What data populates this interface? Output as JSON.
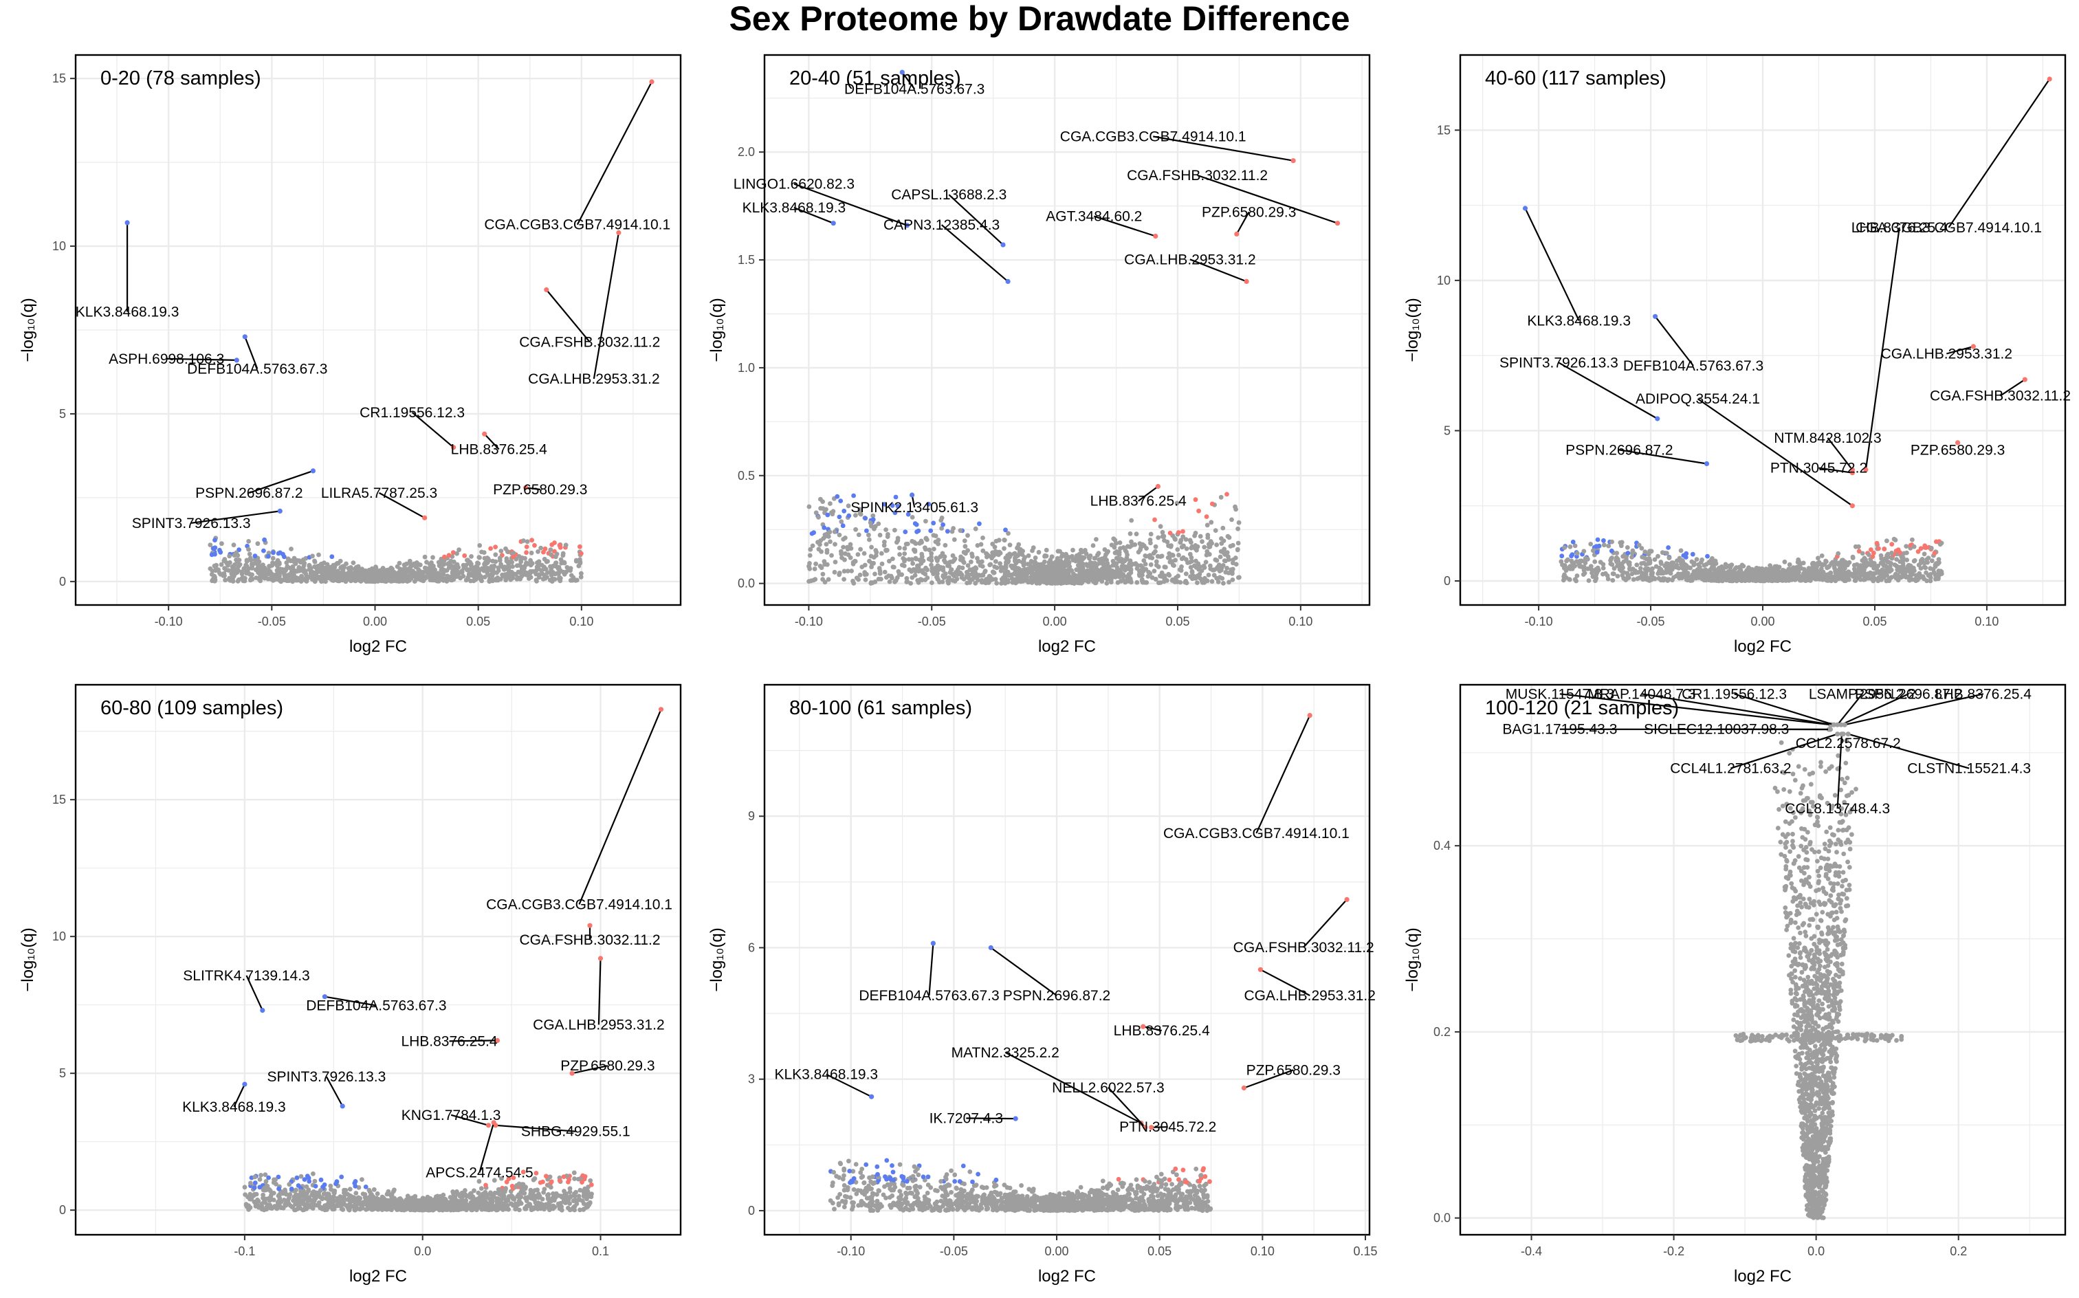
{
  "chart_data": {
    "type": "scatter",
    "subtype": "volcano-grid",
    "title": "Sex Proteome by Drawdate Difference",
    "xlabel": "log2 FC",
    "ylabel": "−log₁₀(q)",
    "colors": {
      "up": "#f8766d",
      "down": "#5b7cf0",
      "ns": "#9e9e9e",
      "grid": "#ebebeb",
      "frame": "#000000"
    },
    "panels": [
      {
        "label": "0-20 (78 samples)",
        "xlim": [
          -0.145,
          0.148
        ],
        "ylim": [
          -0.7,
          15.7
        ],
        "xticks": [
          -0.1,
          -0.05,
          0.0,
          0.05,
          0.1
        ],
        "xtick_labels": [
          "-0.10",
          "-0.05",
          "0.00",
          "0.05",
          "0.10"
        ],
        "yticks": [
          0,
          5,
          10,
          15
        ],
        "ytick_labels": [
          "0",
          "5",
          "10",
          "15"
        ],
        "cloud": {
          "xmin": -0.08,
          "xmax": 0.1,
          "ymax": 1.3
        },
        "labeled_points": [
          {
            "name": "CGA.CGB3.CGB7.4914.10.1",
            "x": 0.134,
            "y": 14.9,
            "lx": 0.098,
            "ly": 10.5,
            "dir": "up"
          },
          {
            "name": "KLK3.8468.19.3",
            "x": -0.12,
            "y": 10.7,
            "lx": -0.12,
            "ly": 7.9,
            "dir": "down"
          },
          {
            "name": "CGA.FSHB.3032.11.2",
            "x": 0.083,
            "y": 8.7,
            "lx": 0.104,
            "ly": 7.0,
            "dir": "up"
          },
          {
            "name": "CGA.LHB.2953.31.2",
            "x": 0.118,
            "y": 10.4,
            "lx": 0.106,
            "ly": 5.9,
            "dir": "up"
          },
          {
            "name": "DEFB104A.5763.67.3",
            "x": -0.063,
            "y": 7.3,
            "lx": -0.057,
            "ly": 6.2,
            "dir": "down"
          },
          {
            "name": "ASPH.6998.106.3",
            "x": -0.067,
            "y": 6.6,
            "lx": -0.101,
            "ly": 6.5,
            "dir": "down"
          },
          {
            "name": "CR1.19556.12.3",
            "x": 0.038,
            "y": 4.0,
            "lx": 0.018,
            "ly": 4.9,
            "dir": "up"
          },
          {
            "name": "LHB.8376.25.4",
            "x": 0.053,
            "y": 4.4,
            "lx": 0.06,
            "ly": 3.8,
            "dir": "up"
          },
          {
            "name": "PSPN.2696.87.2",
            "x": -0.03,
            "y": 3.3,
            "lx": -0.061,
            "ly": 2.5,
            "dir": "down"
          },
          {
            "name": "LILRA5.7787.25.3",
            "x": 0.024,
            "y": 1.9,
            "lx": 0.002,
            "ly": 2.5,
            "dir": "up"
          },
          {
            "name": "PZP.6580.29.3",
            "x": 0.073,
            "y": 2.8,
            "lx": 0.08,
            "ly": 2.6,
            "dir": "up"
          },
          {
            "name": "SPINT3.7926.13.3",
            "x": -0.046,
            "y": 2.1,
            "lx": -0.089,
            "ly": 1.6,
            "dir": "down"
          }
        ]
      },
      {
        "label": "20-40 (51 samples)",
        "xlim": [
          -0.118,
          0.128
        ],
        "ylim": [
          -0.1,
          2.45
        ],
        "xticks": [
          -0.1,
          -0.05,
          0.0,
          0.05,
          0.1
        ],
        "xtick_labels": [
          "-0.10",
          "-0.05",
          "0.00",
          "0.05",
          "0.10"
        ],
        "yticks": [
          0.0,
          0.5,
          1.0,
          1.5,
          2.0
        ],
        "ytick_labels": [
          "0.0",
          "0.5",
          "1.0",
          "1.5",
          "2.0"
        ],
        "cloud": {
          "xmin": -0.1,
          "xmax": 0.075,
          "ymax": 0.42
        },
        "labeled_points": [
          {
            "name": "DEFB104A.5763.67.3",
            "x": -0.062,
            "y": 2.37,
            "lx": -0.057,
            "ly": 2.27,
            "dir": "down"
          },
          {
            "name": "CGA.CGB3.CGB7.4914.10.1",
            "x": 0.097,
            "y": 1.96,
            "lx": 0.04,
            "ly": 2.05,
            "dir": "up"
          },
          {
            "name": "LINGO1.6620.82.3",
            "x": -0.06,
            "y": 1.66,
            "lx": -0.106,
            "ly": 1.83,
            "dir": "down"
          },
          {
            "name": "CAPSL.13688.2.3",
            "x": -0.021,
            "y": 1.57,
            "lx": -0.043,
            "ly": 1.78,
            "dir": "down"
          },
          {
            "name": "CGA.FSHB.3032.11.2",
            "x": 0.115,
            "y": 1.67,
            "lx": 0.058,
            "ly": 1.87,
            "dir": "up"
          },
          {
            "name": "KLK3.8468.19.3",
            "x": -0.09,
            "y": 1.67,
            "lx": -0.106,
            "ly": 1.72,
            "dir": "down"
          },
          {
            "name": "AGT.3484.60.2",
            "x": 0.041,
            "y": 1.61,
            "lx": 0.016,
            "ly": 1.68,
            "dir": "up"
          },
          {
            "name": "PZP.6580.29.3",
            "x": 0.074,
            "y": 1.62,
            "lx": 0.079,
            "ly": 1.7,
            "dir": "up"
          },
          {
            "name": "CAPN3.12385.4.3",
            "x": -0.019,
            "y": 1.4,
            "lx": -0.046,
            "ly": 1.64,
            "dir": "down"
          },
          {
            "name": "CGA.LHB.2953.31.2",
            "x": 0.078,
            "y": 1.4,
            "lx": 0.055,
            "ly": 1.48,
            "dir": "up"
          },
          {
            "name": "SPINK2.13405.61.3",
            "x": -0.058,
            "y": 0.41,
            "lx": -0.057,
            "ly": 0.33,
            "dir": "down"
          },
          {
            "name": "LHB.8376.25.4",
            "x": 0.042,
            "y": 0.45,
            "lx": 0.034,
            "ly": 0.36,
            "dir": "up"
          }
        ]
      },
      {
        "label": "40-60 (117 samples)",
        "xlim": [
          -0.135,
          0.135
        ],
        "ylim": [
          -0.8,
          17.5
        ],
        "xticks": [
          -0.1,
          -0.05,
          0.0,
          0.05,
          0.1
        ],
        "xtick_labels": [
          "-0.10",
          "-0.05",
          "0.00",
          "0.05",
          "0.10"
        ],
        "yticks": [
          0,
          5,
          10,
          15
        ],
        "ytick_labels": [
          "0",
          "5",
          "10",
          "15"
        ],
        "cloud": {
          "xmin": -0.09,
          "xmax": 0.08,
          "ymax": 1.4
        },
        "labeled_points": [
          {
            "name": "CGA.CGB3.CGB7.4914.10.1",
            "x": 0.128,
            "y": 16.7,
            "lx": 0.083,
            "ly": 11.6,
            "dir": "up"
          },
          {
            "name": "LHB.8376.25.4",
            "x": 0.046,
            "y": 3.7,
            "lx": 0.061,
            "ly": 11.6,
            "dir": "up"
          },
          {
            "name": "KLK3.8468.19.3",
            "x": -0.106,
            "y": 12.4,
            "lx": -0.082,
            "ly": 8.5,
            "dir": "down"
          },
          {
            "name": "DEFB104A.5763.67.3",
            "x": -0.048,
            "y": 8.8,
            "lx": -0.031,
            "ly": 7.0,
            "dir": "down"
          },
          {
            "name": "SPINT3.7926.13.3",
            "x": -0.047,
            "y": 5.4,
            "lx": -0.091,
            "ly": 7.1,
            "dir": "down"
          },
          {
            "name": "CGA.LHB.2953.31.2",
            "x": 0.094,
            "y": 7.8,
            "lx": 0.082,
            "ly": 7.4,
            "dir": "up"
          },
          {
            "name": "CGA.FSHB.3032.11.2",
            "x": 0.117,
            "y": 6.7,
            "lx": 0.106,
            "ly": 6.0,
            "dir": "up"
          },
          {
            "name": "ADIPOQ.3554.24.1",
            "x": 0.04,
            "y": 2.5,
            "lx": -0.029,
            "ly": 5.9,
            "dir": "up"
          },
          {
            "name": "NTM.8428.102.3",
            "x": 0.04,
            "y": 3.7,
            "lx": 0.029,
            "ly": 4.6,
            "dir": "up"
          },
          {
            "name": "PSPN.2696.87.2",
            "x": -0.025,
            "y": 3.9,
            "lx": -0.064,
            "ly": 4.2,
            "dir": "down"
          },
          {
            "name": "PZP.6580.29.3",
            "x": 0.087,
            "y": 4.6,
            "lx": 0.087,
            "ly": 4.2,
            "dir": "up"
          },
          {
            "name": "PTN.3045.72.2",
            "x": 0.04,
            "y": 3.6,
            "lx": 0.025,
            "ly": 3.6,
            "dir": "up"
          }
        ]
      },
      {
        "label": "60-80 (109 samples)",
        "xlim": [
          -0.195,
          0.145
        ],
        "ylim": [
          -0.9,
          19.2
        ],
        "xticks": [
          -0.1,
          0.0,
          0.1
        ],
        "xtick_labels": [
          "-0.1",
          "0.0",
          "0.1"
        ],
        "yticks": [
          0,
          5,
          10,
          15
        ],
        "ytick_labels": [
          "0",
          "5",
          "10",
          "15"
        ],
        "cloud": {
          "xmin": -0.1,
          "xmax": 0.095,
          "ymax": 1.4
        },
        "labeled_points": [
          {
            "name": "CGA.CGB3.CGB7.4914.10.1",
            "x": 0.134,
            "y": 18.3,
            "lx": 0.088,
            "ly": 11.0,
            "dir": "up"
          },
          {
            "name": "CGA.FSHB.3032.11.2",
            "x": 0.094,
            "y": 10.4,
            "lx": 0.094,
            "ly": 9.7,
            "dir": "up"
          },
          {
            "name": "SLITRK4.7139.14.3",
            "x": -0.09,
            "y": 7.3,
            "lx": -0.099,
            "ly": 8.4,
            "dir": "down"
          },
          {
            "name": "DEFB104A.5763.67.3",
            "x": -0.055,
            "y": 7.8,
            "lx": -0.026,
            "ly": 7.3,
            "dir": "down"
          },
          {
            "name": "CGA.LHB.2953.31.2",
            "x": 0.1,
            "y": 9.2,
            "lx": 0.099,
            "ly": 6.6,
            "dir": "up"
          },
          {
            "name": "LHB.8376.25.4",
            "x": 0.042,
            "y": 6.2,
            "lx": 0.015,
            "ly": 6.0,
            "dir": "up"
          },
          {
            "name": "PZP.6580.29.3",
            "x": 0.084,
            "y": 5.0,
            "lx": 0.104,
            "ly": 5.1,
            "dir": "up"
          },
          {
            "name": "SPINT3.7926.13.3",
            "x": -0.045,
            "y": 3.8,
            "lx": -0.054,
            "ly": 4.7,
            "dir": "down"
          },
          {
            "name": "KLK3.8468.19.3",
            "x": -0.1,
            "y": 4.6,
            "lx": -0.106,
            "ly": 3.6,
            "dir": "down"
          },
          {
            "name": "KNG1.7784.1.3",
            "x": 0.037,
            "y": 3.1,
            "lx": 0.016,
            "ly": 3.3,
            "dir": "up"
          },
          {
            "name": "SHBG.4929.55.1",
            "x": 0.041,
            "y": 3.1,
            "lx": 0.086,
            "ly": 2.7,
            "dir": "up"
          },
          {
            "name": "APCS.2474.54.5",
            "x": 0.04,
            "y": 3.2,
            "lx": 0.032,
            "ly": 1.2,
            "dir": "up"
          }
        ]
      },
      {
        "label": "80-100 (61 samples)",
        "xlim": [
          -0.142,
          0.152
        ],
        "ylim": [
          -0.55,
          12.0
        ],
        "xticks": [
          -0.1,
          -0.05,
          0.0,
          0.05,
          0.1,
          0.15
        ],
        "xtick_labels": [
          "-0.10",
          "-0.05",
          "0.00",
          "0.05",
          "0.10",
          "0.15"
        ],
        "yticks": [
          0,
          3,
          6,
          9
        ],
        "ytick_labels": [
          "0",
          "3",
          "6",
          "9"
        ],
        "cloud": {
          "xmin": -0.11,
          "xmax": 0.075,
          "ymax": 1.15
        },
        "labeled_points": [
          {
            "name": "CGA.CGB3.CGB7.4914.10.1",
            "x": 0.123,
            "y": 11.3,
            "lx": 0.097,
            "ly": 8.5,
            "dir": "up"
          },
          {
            "name": "CGA.FSHB.3032.11.2",
            "x": 0.141,
            "y": 7.1,
            "lx": 0.12,
            "ly": 5.9,
            "dir": "up"
          },
          {
            "name": "DEFB104A.5763.67.3",
            "x": -0.06,
            "y": 6.1,
            "lx": -0.062,
            "ly": 4.8,
            "dir": "down"
          },
          {
            "name": "PSPN.2696.87.2",
            "x": -0.032,
            "y": 6.0,
            "lx": 0.0,
            "ly": 4.8,
            "dir": "down"
          },
          {
            "name": "CGA.LHB.2953.31.2",
            "x": 0.099,
            "y": 5.5,
            "lx": 0.123,
            "ly": 4.8,
            "dir": "up"
          },
          {
            "name": "LHB.8376.25.4",
            "x": 0.042,
            "y": 4.2,
            "lx": 0.051,
            "ly": 4.0,
            "dir": "up"
          },
          {
            "name": "MATN2.3325.2.2",
            "x": 0.041,
            "y": 2.0,
            "lx": -0.025,
            "ly": 3.5,
            "dir": "up"
          },
          {
            "name": "PZP.6580.29.3",
            "x": 0.091,
            "y": 2.8,
            "lx": 0.115,
            "ly": 3.1,
            "dir": "up"
          },
          {
            "name": "KLK3.8468.19.3",
            "x": -0.09,
            "y": 2.6,
            "lx": -0.112,
            "ly": 3.0,
            "dir": "down"
          },
          {
            "name": "NELL2.6022.57.3",
            "x": 0.043,
            "y": 1.9,
            "lx": 0.025,
            "ly": 2.7,
            "dir": "up"
          },
          {
            "name": "IK.7207.4.3",
            "x": -0.02,
            "y": 2.1,
            "lx": -0.044,
            "ly": 2.0,
            "dir": "down"
          },
          {
            "name": "PTN.3045.72.2",
            "x": 0.046,
            "y": 1.9,
            "lx": 0.054,
            "ly": 1.8,
            "dir": "up"
          }
        ]
      },
      {
        "label": "100-120 (21 samples)",
        "xlim": [
          -0.5,
          0.35
        ],
        "ylim": [
          -0.018,
          0.573
        ],
        "xticks": [
          -0.4,
          -0.2,
          0.0,
          0.2
        ],
        "xtick_labels": [
          "-0.4",
          "-0.2",
          "0.0",
          "0.2"
        ],
        "yticks": [
          0.0,
          0.2,
          0.4
        ],
        "ytick_labels": [
          "0.0",
          "0.2",
          "0.4"
        ],
        "cloud": {
          "xmin": -0.1,
          "xmax": 0.1,
          "ymax": 0.52,
          "shape": "funnel"
        },
        "labeled_points": [
          {
            "name": "MUSK.11547.8.3",
            "x": 0.02,
            "y": 0.53,
            "lx": -0.36,
            "ly": 0.558,
            "dir": "ns"
          },
          {
            "name": "MRAP.14048.7.3",
            "x": 0.022,
            "y": 0.53,
            "lx": -0.245,
            "ly": 0.558,
            "dir": "ns"
          },
          {
            "name": "CR1.19556.12.3",
            "x": 0.025,
            "y": 0.53,
            "lx": -0.115,
            "ly": 0.558,
            "dir": "ns"
          },
          {
            "name": "LSAMP.2956.2.2",
            "x": 0.03,
            "y": 0.53,
            "lx": 0.065,
            "ly": 0.558,
            "dir": "ns"
          },
          {
            "name": "PSPN.2696.87.2",
            "x": 0.035,
            "y": 0.53,
            "lx": 0.13,
            "ly": 0.558,
            "dir": "ns"
          },
          {
            "name": "LHB.8376.25.4",
            "x": 0.04,
            "y": 0.53,
            "lx": 0.235,
            "ly": 0.558,
            "dir": "ns"
          },
          {
            "name": "BAG1.17195.43.3",
            "x": 0.018,
            "y": 0.525,
            "lx": -0.36,
            "ly": 0.52,
            "dir": "ns"
          },
          {
            "name": "SIGLEC12.10037.98.3",
            "x": 0.02,
            "y": 0.525,
            "lx": -0.14,
            "ly": 0.52,
            "dir": "ns"
          },
          {
            "name": "CCL2.2578.67.2",
            "x": 0.038,
            "y": 0.52,
            "lx": 0.045,
            "ly": 0.505,
            "dir": "ns"
          },
          {
            "name": "CCL4L1.2781.63.2",
            "x": 0.03,
            "y": 0.52,
            "lx": -0.12,
            "ly": 0.478,
            "dir": "ns"
          },
          {
            "name": "CLSTN1.15521.4.3",
            "x": 0.045,
            "y": 0.52,
            "lx": 0.215,
            "ly": 0.478,
            "dir": "ns"
          },
          {
            "name": "CCL8.13748.4.3",
            "x": 0.036,
            "y": 0.52,
            "lx": 0.03,
            "ly": 0.435,
            "dir": "ns"
          }
        ]
      }
    ]
  }
}
